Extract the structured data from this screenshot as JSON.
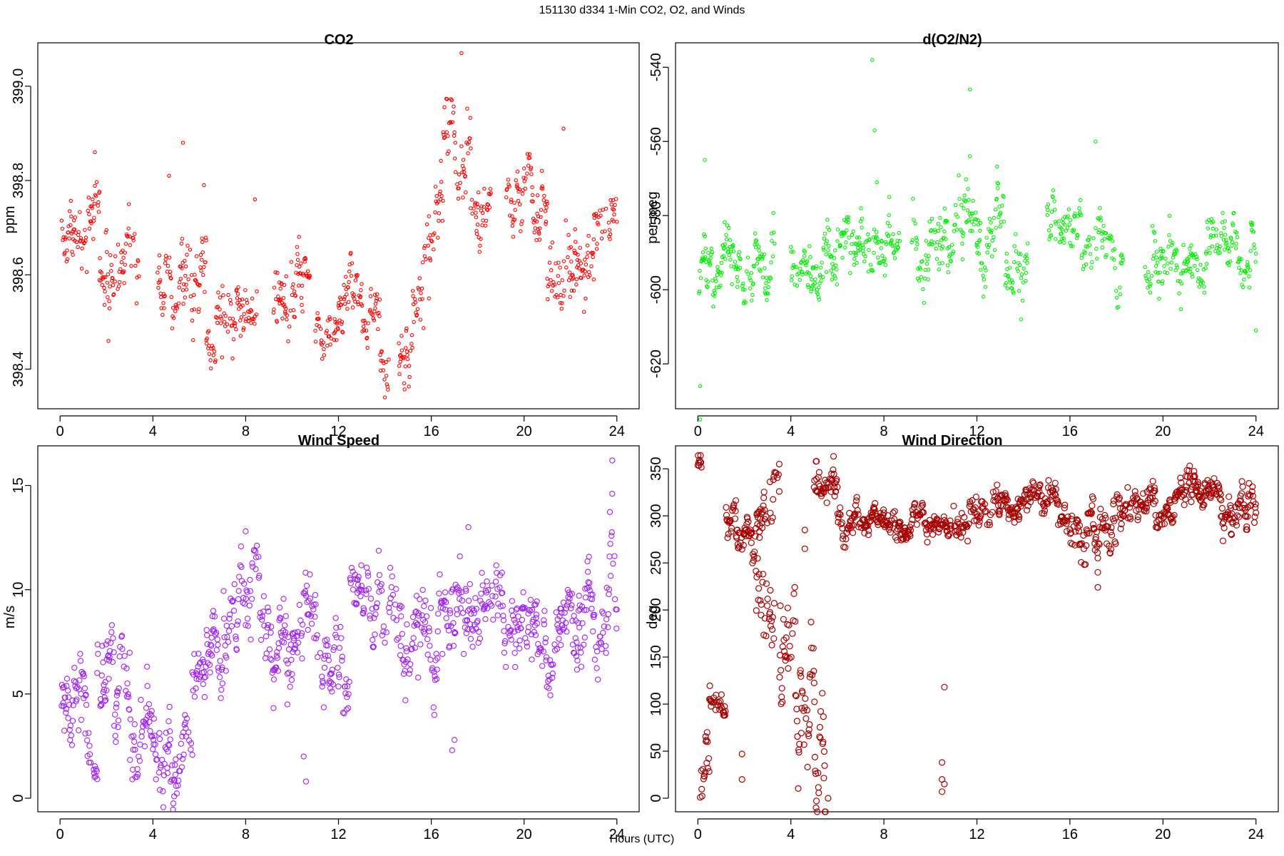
{
  "figure": {
    "title": "151130   d334   1-Min CO2, O2, and Winds",
    "xlabel": "Hours (UTC)"
  },
  "chart_data": [
    {
      "id": "co2",
      "type": "scatter",
      "title": "CO2",
      "ylabel": "ppm",
      "xlabel": "Hours (UTC)",
      "color": "#ff0000",
      "xlim": [
        -0.96,
        24.96
      ],
      "ylim": [
        398.316,
        399.092
      ],
      "xticks": [
        0,
        4,
        8,
        12,
        16,
        20,
        24
      ],
      "yticks": [
        398.4,
        398.6,
        398.8,
        399.0
      ],
      "ytick_labels": [
        "398.4",
        "398.6",
        "398.8",
        "399.0"
      ],
      "segments": [
        {
          "x0": 0.05,
          "x1": 1.2,
          "base": 398.67,
          "spread": 0.05
        },
        {
          "x0": 1.2,
          "x1": 1.7,
          "base": 398.74,
          "spread": 0.05
        },
        {
          "x0": 1.7,
          "x1": 2.8,
          "base": 398.59,
          "spread": 0.05
        },
        {
          "x0": 2.8,
          "x1": 3.4,
          "base": 398.64,
          "spread": 0.06
        },
        {
          "x0": 4.2,
          "x1": 5.2,
          "base": 398.57,
          "spread": 0.04
        },
        {
          "x0": 5.2,
          "x1": 6.3,
          "base": 398.58,
          "spread": 0.05
        },
        {
          "x0": 6.3,
          "x1": 7.0,
          "base": 398.47,
          "spread": 0.05
        },
        {
          "x0": 7.0,
          "x1": 8.5,
          "base": 398.52,
          "spread": 0.04
        },
        {
          "x0": 9.2,
          "x1": 10.3,
          "base": 398.57,
          "spread": 0.05
        },
        {
          "x0": 10.3,
          "x1": 10.8,
          "base": 398.63,
          "spread": 0.05
        },
        {
          "x0": 11.0,
          "x1": 12.2,
          "base": 398.5,
          "spread": 0.04
        },
        {
          "x0": 12.2,
          "x1": 13.8,
          "base": 398.54,
          "spread": 0.04
        },
        {
          "x0": 13.8,
          "x1": 14.2,
          "base": 398.42,
          "spread": 0.05
        },
        {
          "x0": 14.6,
          "x1": 15.2,
          "base": 398.43,
          "spread": 0.04
        },
        {
          "x0": 15.2,
          "x1": 15.7,
          "base": 398.55,
          "spread": 0.06
        },
        {
          "x0": 15.7,
          "x1": 16.5,
          "base": 398.67,
          "spread": 0.05
        },
        {
          "x0": 16.5,
          "x1": 17.7,
          "base": 398.88,
          "spread": 0.07
        },
        {
          "x0": 17.7,
          "x1": 18.6,
          "base": 398.73,
          "spread": 0.06
        },
        {
          "x0": 19.2,
          "x1": 21.0,
          "base": 398.74,
          "spread": 0.05
        },
        {
          "x0": 21.0,
          "x1": 23.0,
          "base": 398.62,
          "spread": 0.06
        },
        {
          "x0": 23.0,
          "x1": 24.0,
          "base": 398.7,
          "spread": 0.05
        }
      ],
      "outliers": [
        [
          1.5,
          398.86
        ],
        [
          4.7,
          398.81
        ],
        [
          5.3,
          398.88
        ],
        [
          6.2,
          398.79
        ],
        [
          8.4,
          398.76
        ],
        [
          17.3,
          399.07
        ],
        [
          21.7,
          398.91
        ],
        [
          14.0,
          398.34
        ],
        [
          15.9,
          398.55
        ]
      ]
    },
    {
      "id": "o2",
      "type": "scatter",
      "title": "d(O2/N2)",
      "ylabel": "per meg",
      "xlabel": "Hours (UTC)",
      "color": "#00ee00",
      "xlim": [
        -0.96,
        24.96
      ],
      "ylim": [
        -632.1,
        -533.4
      ],
      "xticks": [
        0,
        4,
        8,
        12,
        16,
        20,
        24
      ],
      "yticks": [
        -620,
        -600,
        -580,
        -560,
        -540
      ],
      "ytick_labels": [
        "-620",
        "-600",
        "-580",
        "-560",
        "-540"
      ],
      "segments": [
        {
          "x0": 0.05,
          "x1": 0.5,
          "base": -596,
          "spread": 6
        },
        {
          "x0": 0.5,
          "x1": 3.3,
          "base": -592,
          "spread": 5
        },
        {
          "x0": 4.0,
          "x1": 6.0,
          "base": -593,
          "spread": 5
        },
        {
          "x0": 6.0,
          "x1": 8.7,
          "base": -590,
          "spread": 5
        },
        {
          "x0": 9.2,
          "x1": 11.3,
          "base": -587,
          "spread": 6
        },
        {
          "x0": 11.3,
          "x1": 13.2,
          "base": -587,
          "spread": 6
        },
        {
          "x0": 13.2,
          "x1": 14.2,
          "base": -595,
          "spread": 5
        },
        {
          "x0": 15.0,
          "x1": 16.5,
          "base": -581,
          "spread": 4
        },
        {
          "x0": 16.5,
          "x1": 18.3,
          "base": -589,
          "spread": 5
        },
        {
          "x0": 19.2,
          "x1": 21.3,
          "base": -593,
          "spread": 5
        },
        {
          "x0": 21.3,
          "x1": 24.0,
          "base": -593,
          "spread": 5
        }
      ],
      "outliers": [
        [
          7.5,
          -538
        ],
        [
          7.6,
          -557
        ],
        [
          7.7,
          -571
        ],
        [
          11.7,
          -546
        ],
        [
          11.7,
          -564
        ],
        [
          0.1,
          -626
        ],
        [
          0.1,
          -635
        ],
        [
          0.3,
          -565
        ],
        [
          17.1,
          -560
        ],
        [
          24.0,
          -611
        ],
        [
          13.9,
          -608
        ]
      ]
    },
    {
      "id": "ws",
      "type": "scatter",
      "title": "Wind Speed",
      "ylabel": "m/s",
      "xlabel": "Hours (UTC)",
      "color": "#a020f0",
      "xlim": [
        -0.96,
        24.96
      ],
      "ylim": [
        -0.65,
        16.9
      ],
      "xticks": [
        0,
        4,
        8,
        12,
        16,
        20,
        24
      ],
      "yticks": [
        0,
        5,
        10,
        15
      ],
      "ytick_labels": [
        "0",
        "5",
        "10",
        "15"
      ],
      "segments": [
        {
          "x0": 0.05,
          "x1": 1.2,
          "base": 4.5,
          "spread": 1.2
        },
        {
          "x0": 1.2,
          "x1": 1.6,
          "base": 2.0,
          "spread": 1.0
        },
        {
          "x0": 1.6,
          "x1": 3.0,
          "base": 5.5,
          "spread": 1.5
        },
        {
          "x0": 3.0,
          "x1": 3.5,
          "base": 2.0,
          "spread": 1.3
        },
        {
          "x0": 3.5,
          "x1": 5.7,
          "base": 2.5,
          "spread": 1.3
        },
        {
          "x0": 5.7,
          "x1": 7.0,
          "base": 6.0,
          "spread": 1.3
        },
        {
          "x0": 7.0,
          "x1": 8.8,
          "base": 9.5,
          "spread": 1.3
        },
        {
          "x0": 8.8,
          "x1": 11.2,
          "base": 8.5,
          "spread": 1.3
        },
        {
          "x0": 11.2,
          "x1": 12.5,
          "base": 6.5,
          "spread": 1.2
        },
        {
          "x0": 12.5,
          "x1": 14.5,
          "base": 9.5,
          "spread": 1.2
        },
        {
          "x0": 14.5,
          "x1": 17.5,
          "base": 8.0,
          "spread": 1.5
        },
        {
          "x0": 17.5,
          "x1": 20.5,
          "base": 9.0,
          "spread": 1.3
        },
        {
          "x0": 20.5,
          "x1": 22.5,
          "base": 8.8,
          "spread": 1.3
        },
        {
          "x0": 22.5,
          "x1": 24.0,
          "base": 8.5,
          "spread": 1.5
        }
      ],
      "outliers": [
        [
          23.8,
          16.2
        ],
        [
          23.8,
          14.6
        ],
        [
          8.0,
          12.8
        ],
        [
          17.6,
          13.0
        ],
        [
          10.6,
          0.8
        ],
        [
          10.5,
          2.0
        ],
        [
          9.8,
          4.5
        ],
        [
          4.3,
          0.4
        ],
        [
          16.9,
          2.3
        ],
        [
          17.0,
          2.8
        ]
      ]
    },
    {
      "id": "wd",
      "type": "scatter",
      "title": "Wind Direction",
      "ylabel": "deg",
      "xlabel": "Hours (UTC)",
      "color": "#a50000",
      "xlim": [
        -0.96,
        24.96
      ],
      "ylim": [
        -14.4,
        374.4
      ],
      "xticks": [
        0,
        4,
        8,
        12,
        16,
        20,
        24
      ],
      "yticks": [
        0,
        50,
        100,
        150,
        200,
        250,
        300,
        350
      ],
      "ytick_labels": [
        "0",
        "50",
        "100",
        "150",
        "200",
        "250",
        "300",
        "350"
      ],
      "segments": [
        {
          "x0": 0.0,
          "x1": 0.15,
          "base": 350,
          "spread": 6
        },
        {
          "x0": 0.15,
          "x1": 0.5,
          "base": 45,
          "spread": 25
        },
        {
          "x0": 0.5,
          "x1": 1.2,
          "base": 95,
          "spread": 12
        },
        {
          "x0": 1.2,
          "x1": 3.0,
          "base": 300,
          "spread": 15
        },
        {
          "x0": 2.5,
          "x1": 3.3,
          "base": 240,
          "spread": 40
        },
        {
          "x0": 3.1,
          "x1": 3.5,
          "base": 330,
          "spread": 20
        },
        {
          "x0": 3.5,
          "x1": 4.2,
          "base": 130,
          "spread": 40
        },
        {
          "x0": 4.2,
          "x1": 5.5,
          "base": 80,
          "spread": 45
        },
        {
          "x0": 5.0,
          "x1": 6.0,
          "base": 330,
          "spread": 15
        },
        {
          "x0": 6.0,
          "x1": 8.5,
          "base": 295,
          "spread": 10
        },
        {
          "x0": 8.5,
          "x1": 11.0,
          "base": 290,
          "spread": 10
        },
        {
          "x0": 11.0,
          "x1": 13.0,
          "base": 300,
          "spread": 12
        },
        {
          "x0": 13.0,
          "x1": 15.5,
          "base": 322,
          "spread": 10
        },
        {
          "x0": 15.5,
          "x1": 17.0,
          "base": 295,
          "spread": 15
        },
        {
          "x0": 17.0,
          "x1": 18.0,
          "base": 280,
          "spread": 20
        },
        {
          "x0": 18.0,
          "x1": 20.5,
          "base": 310,
          "spread": 12
        },
        {
          "x0": 20.5,
          "x1": 22.5,
          "base": 325,
          "spread": 10
        },
        {
          "x0": 22.5,
          "x1": 24.0,
          "base": 300,
          "spread": 15
        }
      ],
      "outliers": [
        [
          10.6,
          118
        ],
        [
          10.5,
          38
        ],
        [
          10.5,
          20
        ],
        [
          10.6,
          15
        ],
        [
          10.5,
          7
        ],
        [
          3.5,
          355
        ],
        [
          5.1,
          358
        ],
        [
          17.2,
          224
        ],
        [
          17.2,
          240
        ],
        [
          1.9,
          47
        ],
        [
          1.9,
          20
        ],
        [
          5.6,
          0
        ],
        [
          4.6,
          285
        ],
        [
          4.6,
          265
        ],
        [
          0.1,
          1
        ]
      ]
    }
  ]
}
